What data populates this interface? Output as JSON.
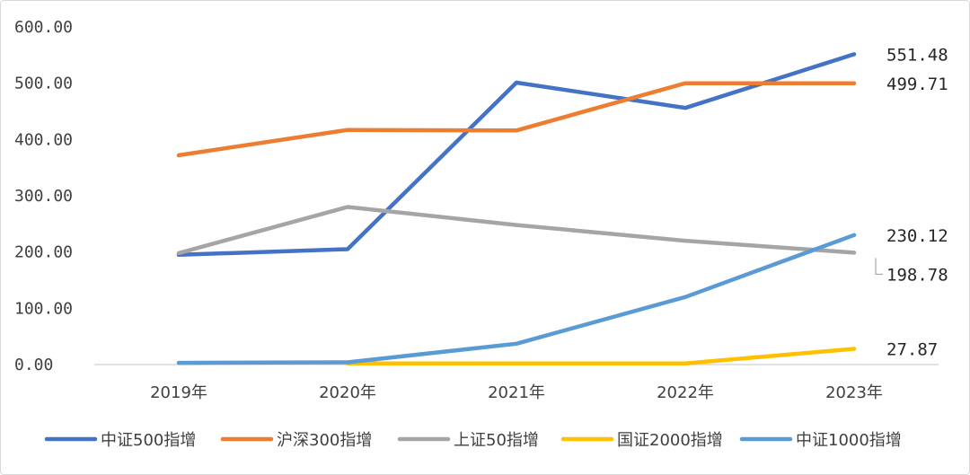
{
  "chart_data": {
    "type": "line",
    "title": "",
    "xlabel": "",
    "ylabel": "",
    "categories": [
      "2019年",
      "2020年",
      "2021年",
      "2022年",
      "2023年"
    ],
    "ylim": [
      0,
      600
    ],
    "yticks": [
      "0.00",
      "100.00",
      "200.00",
      "300.00",
      "400.00",
      "500.00",
      "600.00"
    ],
    "grid": false,
    "legend_position": "bottom",
    "series": [
      {
        "name": "中证500指增",
        "color": "#4472C4",
        "values": [
          195,
          205,
          501,
          456,
          551.48
        ]
      },
      {
        "name": "沪深300指增",
        "color": "#ED7D31",
        "values": [
          372,
          417,
          416,
          500,
          499.71
        ]
      },
      {
        "name": "上证50指增",
        "color": "#A5A5A5",
        "values": [
          198,
          280,
          248,
          220,
          198.78
        ]
      },
      {
        "name": "国证2000指增",
        "color": "#FFC000",
        "values": [
          null,
          2,
          2,
          2,
          27.87
        ]
      },
      {
        "name": "中证1000指增",
        "color": "#5B9BD5",
        "values": [
          3,
          4,
          37,
          120,
          230.12
        ]
      }
    ],
    "end_labels": [
      {
        "series": 0,
        "text": "551.48"
      },
      {
        "series": 1,
        "text": "499.71"
      },
      {
        "series": 4,
        "text": "230.12"
      },
      {
        "series": 2,
        "text": "198.78"
      },
      {
        "series": 3,
        "text": "27.87"
      }
    ]
  }
}
